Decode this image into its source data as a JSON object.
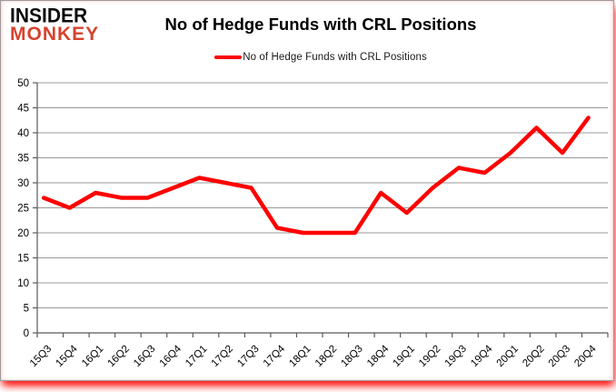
{
  "logo": {
    "line1": "INSIDER",
    "line2": "MONKEY"
  },
  "header": {
    "title": "No of Hedge Funds with CRL Positions"
  },
  "legend": {
    "label": "No of Hedge Funds with CRL Positions",
    "line_color": "#fe0000"
  },
  "chart_data": {
    "type": "line",
    "title": "No of Hedge Funds with CRL Positions",
    "series": [
      {
        "name": "No of Hedge Funds with CRL Positions",
        "values": [
          27,
          25,
          28,
          27,
          27,
          29,
          31,
          30,
          29,
          21,
          20,
          20,
          20,
          28,
          24,
          29,
          33,
          32,
          36,
          41,
          36,
          43
        ]
      }
    ],
    "categories": [
      "15Q3",
      "15Q4",
      "16Q1",
      "16Q2",
      "16Q3",
      "16Q4",
      "17Q1",
      "17Q2",
      "17Q3",
      "17Q4",
      "18Q1",
      "18Q2",
      "18Q3",
      "18Q4",
      "19Q1",
      "19Q2",
      "19Q3",
      "19Q4",
      "20Q1",
      "20Q2",
      "20Q3",
      "20Q4"
    ],
    "xlabel": "",
    "ylabel": "",
    "ylim": [
      0,
      50
    ],
    "yticks": [
      0,
      5,
      10,
      15,
      20,
      25,
      30,
      35,
      40,
      45,
      50
    ],
    "grid": true,
    "legend_position": "top",
    "line_color": "#fe0000",
    "grid_color": "#999999",
    "axis_color": "#595959",
    "tick_label_color": "#000000"
  }
}
